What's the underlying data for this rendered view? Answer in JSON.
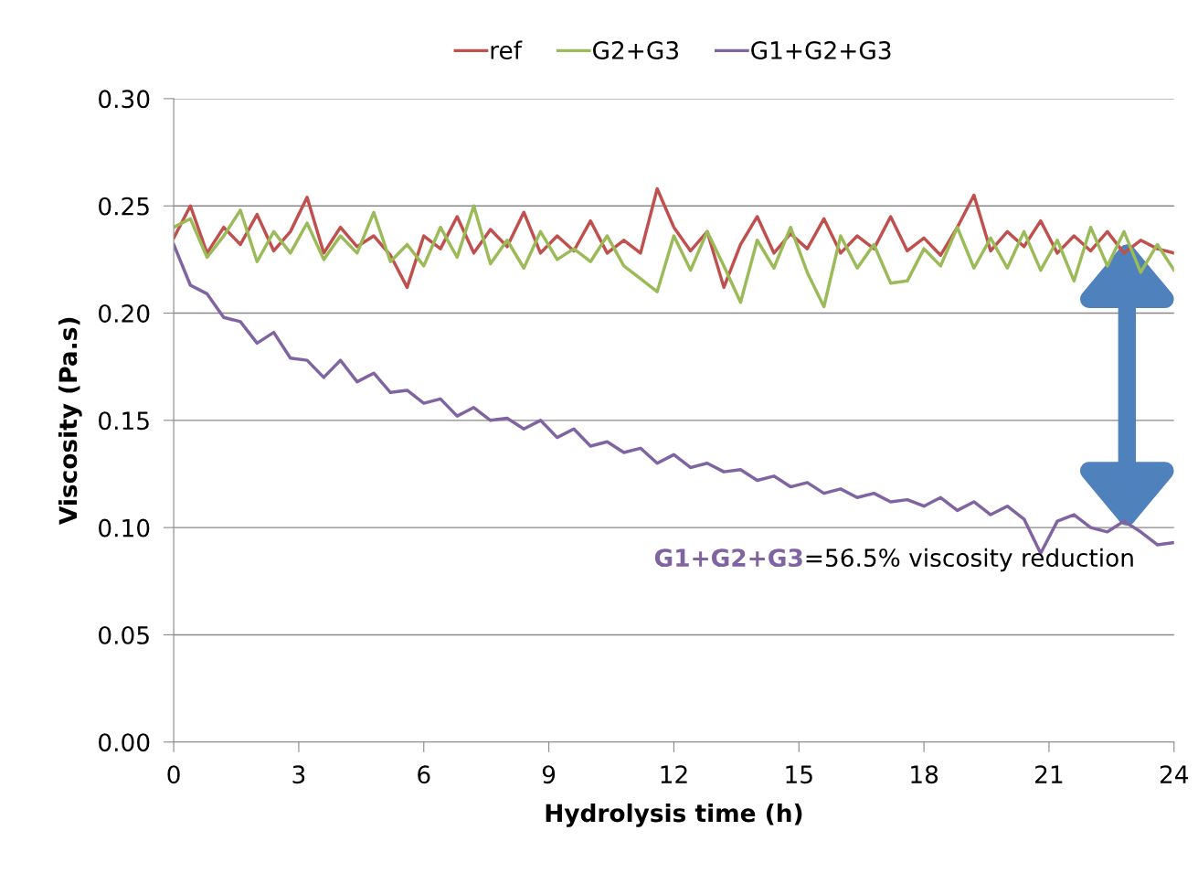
{
  "chart_data": {
    "type": "line",
    "xlabel": "Hydrolysis time (h)",
    "ylabel": "Viscosity (Pa.s)",
    "x": [
      0,
      0.4,
      0.8,
      1.2,
      1.6,
      2.0,
      2.4,
      2.8,
      3.2,
      3.6,
      4.0,
      4.4,
      4.8,
      5.2,
      5.6,
      6.0,
      6.4,
      6.8,
      7.2,
      7.6,
      8.0,
      8.4,
      8.8,
      9.2,
      9.6,
      10.0,
      10.4,
      10.8,
      11.2,
      11.6,
      12.0,
      12.4,
      12.8,
      13.2,
      13.6,
      14.0,
      14.4,
      14.8,
      15.2,
      15.6,
      16.0,
      16.4,
      16.8,
      17.2,
      17.6,
      18.0,
      18.4,
      18.8,
      19.2,
      19.6,
      20.0,
      20.4,
      20.8,
      21.2,
      21.6,
      22.0,
      22.4,
      22.8,
      23.2,
      23.6,
      24.0
    ],
    "series": [
      {
        "name": "ref",
        "color": "#c0504d",
        "values": [
          0.235,
          0.25,
          0.228,
          0.24,
          0.232,
          0.246,
          0.229,
          0.238,
          0.254,
          0.228,
          0.24,
          0.231,
          0.236,
          0.227,
          0.212,
          0.236,
          0.23,
          0.245,
          0.228,
          0.239,
          0.231,
          0.247,
          0.228,
          0.236,
          0.229,
          0.243,
          0.228,
          0.234,
          0.228,
          0.258,
          0.24,
          0.229,
          0.238,
          0.212,
          0.232,
          0.245,
          0.228,
          0.237,
          0.23,
          0.244,
          0.228,
          0.236,
          0.23,
          0.245,
          0.229,
          0.235,
          0.227,
          0.24,
          0.255,
          0.229,
          0.238,
          0.231,
          0.243,
          0.228,
          0.236,
          0.229,
          0.238,
          0.228,
          0.234,
          0.23,
          0.228
        ]
      },
      {
        "name": "G2+G3",
        "color": "#9bbb59",
        "values": [
          0.24,
          0.244,
          0.226,
          0.236,
          0.248,
          0.224,
          0.238,
          0.228,
          0.242,
          0.225,
          0.236,
          0.228,
          0.247,
          0.224,
          0.232,
          0.222,
          0.24,
          0.226,
          0.25,
          0.223,
          0.234,
          0.221,
          0.238,
          0.225,
          0.23,
          0.224,
          0.236,
          0.222,
          0.216,
          0.21,
          0.236,
          0.22,
          0.238,
          0.222,
          0.205,
          0.234,
          0.221,
          0.24,
          0.219,
          0.203,
          0.236,
          0.221,
          0.232,
          0.214,
          0.215,
          0.23,
          0.222,
          0.24,
          0.221,
          0.235,
          0.221,
          0.238,
          0.22,
          0.234,
          0.215,
          0.24,
          0.222,
          0.238,
          0.219,
          0.232,
          0.22
        ]
      },
      {
        "name": "G1+G2+G3",
        "color": "#8064a2",
        "values": [
          0.232,
          0.213,
          0.209,
          0.198,
          0.196,
          0.186,
          0.191,
          0.179,
          0.178,
          0.17,
          0.178,
          0.168,
          0.172,
          0.163,
          0.164,
          0.158,
          0.16,
          0.152,
          0.156,
          0.15,
          0.151,
          0.146,
          0.15,
          0.142,
          0.146,
          0.138,
          0.14,
          0.135,
          0.137,
          0.13,
          0.134,
          0.128,
          0.13,
          0.126,
          0.127,
          0.122,
          0.124,
          0.119,
          0.121,
          0.116,
          0.118,
          0.114,
          0.116,
          0.112,
          0.113,
          0.11,
          0.114,
          0.108,
          0.112,
          0.106,
          0.11,
          0.104,
          0.088,
          0.103,
          0.106,
          0.1,
          0.098,
          0.103,
          0.098,
          0.092,
          0.093
        ]
      }
    ],
    "xlim": [
      0,
      24
    ],
    "xticks": [
      0,
      3,
      6,
      9,
      12,
      15,
      18,
      21,
      24
    ],
    "ylim": [
      0,
      0.3
    ],
    "yticks": [
      {
        "value": 0,
        "label": "0.00"
      },
      {
        "value": 0.05,
        "label": "0.05"
      },
      {
        "value": 0.1,
        "label": "0.10"
      },
      {
        "value": 0.15,
        "label": "0.15"
      },
      {
        "value": 0.2,
        "label": "0.20"
      },
      {
        "value": 0.25,
        "label": "0.25"
      },
      {
        "value": 0.3,
        "label": "0.30"
      }
    ],
    "grid": "y",
    "legend": "top",
    "marker": "none",
    "line_style": "solid",
    "annotations": [
      "G1+G2+G3",
      "=56.5% viscosity reduction"
    ]
  }
}
